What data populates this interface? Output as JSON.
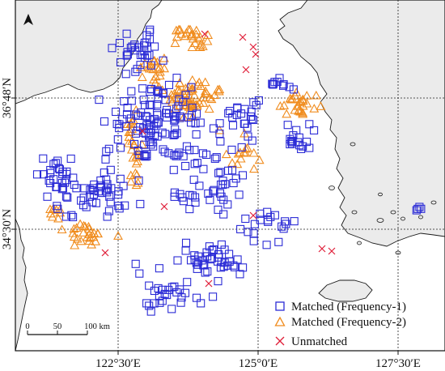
{
  "map": {
    "x_ticks": [
      "122°30′E",
      "125°0′E",
      "127°30′E"
    ],
    "y_ticks": [
      "36°48′N",
      "34°30′N"
    ],
    "north_arrow": "north-arrow-icon",
    "scale_bar": {
      "labels": [
        "0",
        "50",
        "100 km"
      ]
    },
    "legend": [
      {
        "label": "Matched (Frequency-1)",
        "marker": "square",
        "color": "#2b2bd6"
      },
      {
        "label": "Matched (Frequency-2)",
        "marker": "triangle",
        "color": "#f08c1e"
      },
      {
        "label": "Unmatched",
        "marker": "cross",
        "color": "#e0203a"
      }
    ],
    "colors": {
      "land": "#ebebeb",
      "coast": "#1a1a1a",
      "sea": "#ffffff",
      "grid": "#222222"
    }
  }
}
